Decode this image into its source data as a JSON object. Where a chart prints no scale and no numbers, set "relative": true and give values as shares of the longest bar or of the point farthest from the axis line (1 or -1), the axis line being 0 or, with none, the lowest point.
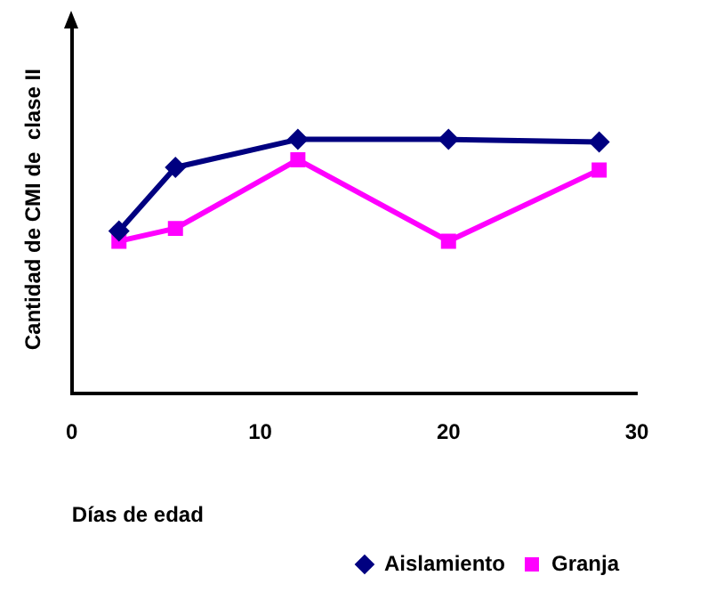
{
  "chart_data": {
    "type": "line",
    "relative": true,
    "xlabel": "Días de edad",
    "ylabel": "Cantidad de CMI de  clase II",
    "x": [
      2.5,
      5.5,
      12,
      20,
      28
    ],
    "xlim": [
      0,
      30
    ],
    "xticks": [
      0,
      10,
      20,
      30
    ],
    "grid": false,
    "legend": "bottom right",
    "line_style": "solid",
    "series": [
      {
        "name": "Aislamiento",
        "color": "#000080",
        "marker": "diamond",
        "values": [
          0.64,
          0.89,
          1,
          1,
          0.99
        ]
      },
      {
        "name": "Granja",
        "color": "#ff00ff",
        "marker": "square",
        "values": [
          0.6,
          0.65,
          0.92,
          0.6,
          0.88
        ]
      }
    ]
  }
}
